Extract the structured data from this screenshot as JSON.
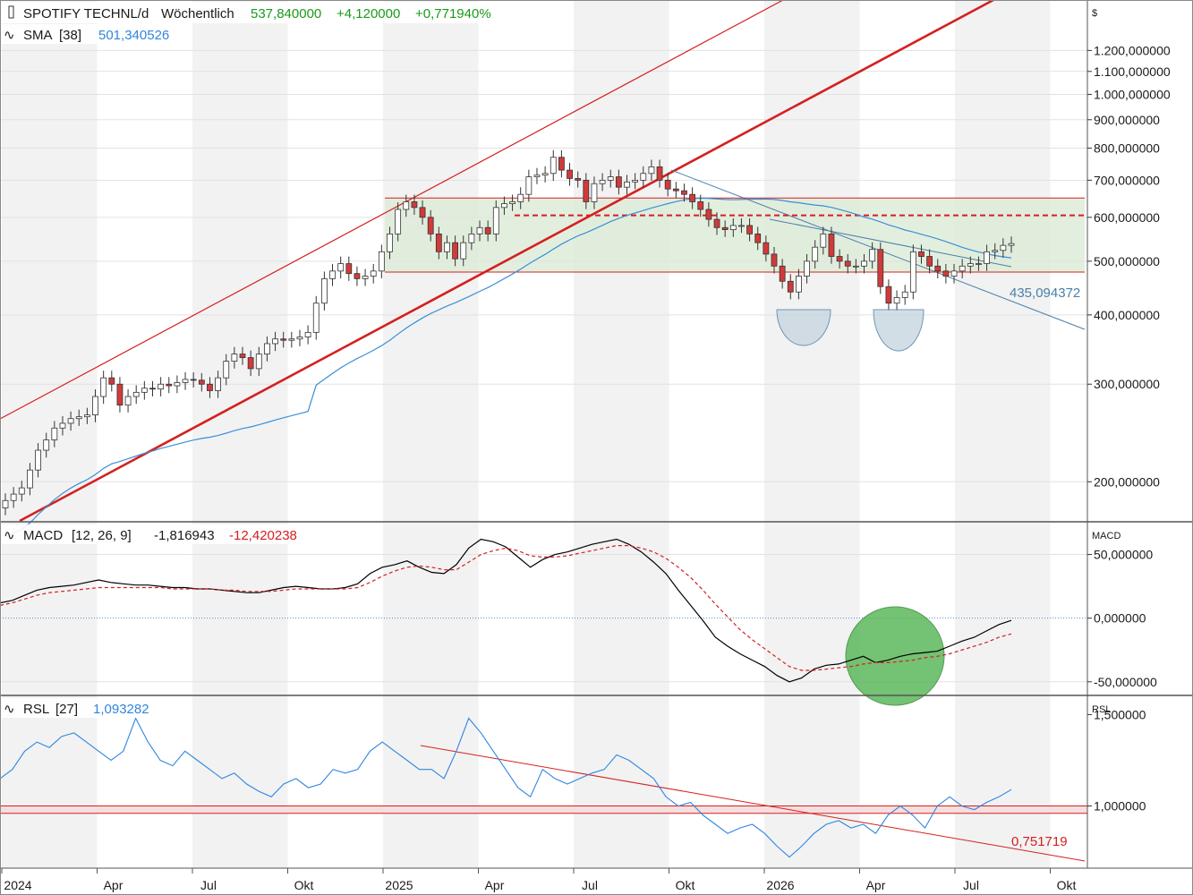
{
  "colors": {
    "candle_up": "#ffffff",
    "candle_down": "#d23a3a",
    "candle_outline": "#333333",
    "sma": "#3a8fd8",
    "red_line": "#d42020",
    "channel_fill": "#dcebd6",
    "trend_blue": "#4a7fa8",
    "macd": "#000000",
    "signal": "#d42020",
    "rsl": "#2f86e0",
    "green_circle": "#5cb85c",
    "band_grey": "#f2f2f2"
  },
  "header": {
    "title": "SPOTIFY TECHNL/d",
    "interval": "Wöchentlich",
    "last": "537,840000",
    "change": "+4,120000",
    "change_pct": "+0,771940%",
    "sma_label": "SMA",
    "sma_param": "[38]",
    "sma_value": "501,340526"
  },
  "macd_header": {
    "label": "MACD",
    "param": "[12, 26, 9]",
    "macd_value": "-1,816943",
    "signal_value": "-12,420238"
  },
  "rsl_header": {
    "label": "RSL",
    "param": "[27]",
    "value": "1,093282"
  },
  "panel_titles": {
    "price_currency": "$",
    "macd": "MACD",
    "rsl": "RSL"
  },
  "annotations": {
    "trend_value": "435,094372",
    "rsl_trend_value": "0,751719"
  },
  "chart_data": [
    {
      "type": "candlestick",
      "title": "SPOTIFY TECHNL/d",
      "scale": "log",
      "ylim": [
        170,
        1480
      ],
      "yticks": [
        200,
        300,
        400,
        500,
        600,
        700,
        800,
        900,
        1000,
        1100,
        1200
      ],
      "ytick_labels": [
        "200,000000",
        "300,000000",
        "400,000000",
        "500,000000",
        "600,000000",
        "700,000000",
        "800,000000",
        "900,000000",
        "1.000,000000",
        "1.100,000000",
        "1.200,000000"
      ],
      "x_labels": [
        "2024",
        "Apr",
        "Jul",
        "Okt",
        "2025",
        "Apr",
        "Jul",
        "Okt",
        "2026",
        "Apr",
        "Jul",
        "Okt"
      ],
      "candles_weekly_close": [
        185,
        190,
        195,
        210,
        228,
        238,
        250,
        255,
        260,
        262,
        264,
        285,
        308,
        300,
        275,
        285,
        290,
        295,
        294,
        300,
        298,
        302,
        306,
        305,
        300,
        292,
        308,
        330,
        340,
        335,
        320,
        340,
        355,
        362,
        360,
        362,
        365,
        372,
        420,
        465,
        480,
        495,
        475,
        465,
        470,
        480,
        520,
        560,
        620,
        640,
        625,
        600,
        560,
        520,
        540,
        505,
        540,
        560,
        575,
        560,
        625,
        635,
        640,
        660,
        710,
        715,
        720,
        770,
        730,
        705,
        700,
        640,
        690,
        700,
        710,
        680,
        695,
        700,
        720,
        740,
        700,
        675,
        670,
        660,
        640,
        620,
        595,
        575,
        570,
        580,
        580,
        560,
        540,
        515,
        490,
        460,
        440,
        470,
        500,
        530,
        560,
        510,
        500,
        490,
        490,
        500,
        525,
        450,
        420,
        430,
        440,
        520,
        510,
        490,
        480,
        470,
        480,
        490,
        495,
        495,
        520,
        523,
        534,
        538
      ],
      "sma_38_close_approx": [
        null
      ],
      "horizontal_levels": [
        478,
        605,
        650
      ],
      "channel_zone": [
        478,
        650
      ]
    },
    {
      "type": "line",
      "title": "MACD",
      "series": [
        {
          "name": "MACD",
          "values": [
            12,
            14,
            18,
            22,
            24,
            25,
            26,
            28,
            30,
            28,
            27,
            26,
            26,
            25,
            24,
            24,
            23,
            23,
            22,
            21,
            20,
            20,
            22,
            24,
            25,
            24,
            23,
            23,
            24,
            27,
            35,
            40,
            42,
            45,
            40,
            36,
            35,
            42,
            55,
            62,
            60,
            56,
            48,
            40,
            46,
            50,
            52,
            55,
            58,
            60,
            62,
            58,
            52,
            44,
            35,
            22,
            10,
            -2,
            -15,
            -22,
            -28,
            -33,
            -38,
            -45,
            -50,
            -47,
            -40,
            -37,
            -36,
            -33,
            -30,
            -35,
            -33,
            -30,
            -28,
            -27,
            -26,
            -22,
            -18,
            -15,
            -10,
            -5,
            -1.8
          ]
        },
        {
          "name": "Signal",
          "values": [
            10,
            12,
            15,
            18,
            20,
            21,
            22,
            23,
            24,
            24,
            24,
            24,
            24,
            24,
            23,
            23,
            23,
            23,
            22,
            22,
            21,
            21,
            21,
            22,
            23,
            23,
            23,
            23,
            23,
            24,
            28,
            33,
            37,
            40,
            41,
            40,
            38,
            38,
            44,
            50,
            53,
            55,
            53,
            49,
            48,
            48,
            49,
            51,
            53,
            55,
            57,
            57,
            55,
            52,
            47,
            40,
            32,
            22,
            11,
            1,
            -9,
            -17,
            -24,
            -31,
            -38,
            -41,
            -41,
            -40,
            -39,
            -38,
            -36,
            -35,
            -35,
            -34,
            -33,
            -31,
            -30,
            -28,
            -25,
            -22,
            -19,
            -15,
            -12.4
          ]
        }
      ],
      "ylim": [
        -60,
        75
      ],
      "yticks": [
        -50,
        0,
        50
      ],
      "ytick_labels": [
        "-50,000000",
        "0,000000",
        "50,000000"
      ]
    },
    {
      "type": "line",
      "title": "RSL",
      "series": [
        {
          "name": "RSL",
          "values": [
            1.15,
            1.2,
            1.3,
            1.35,
            1.32,
            1.38,
            1.4,
            1.35,
            1.3,
            1.25,
            1.3,
            1.48,
            1.35,
            1.25,
            1.22,
            1.3,
            1.25,
            1.2,
            1.15,
            1.18,
            1.12,
            1.08,
            1.05,
            1.12,
            1.15,
            1.1,
            1.12,
            1.2,
            1.18,
            1.2,
            1.3,
            1.35,
            1.3,
            1.25,
            1.2,
            1.2,
            1.15,
            1.3,
            1.48,
            1.4,
            1.3,
            1.2,
            1.1,
            1.05,
            1.2,
            1.15,
            1.12,
            1.15,
            1.18,
            1.2,
            1.28,
            1.25,
            1.2,
            1.15,
            1.05,
            1.0,
            1.02,
            0.95,
            0.9,
            0.85,
            0.88,
            0.9,
            0.85,
            0.78,
            0.72,
            0.78,
            0.85,
            0.9,
            0.92,
            0.88,
            0.9,
            0.85,
            0.95,
            1.0,
            0.95,
            0.88,
            1.0,
            1.05,
            1.0,
            0.98,
            1.02,
            1.05,
            1.09
          ]
        }
      ],
      "ylim": [
        0.66,
        1.6
      ],
      "yticks": [
        1.0,
        1.5
      ],
      "ytick_labels": [
        "1,000000",
        "1,500000"
      ],
      "horizontal_levels": [
        0.96,
        1.0
      ]
    }
  ]
}
